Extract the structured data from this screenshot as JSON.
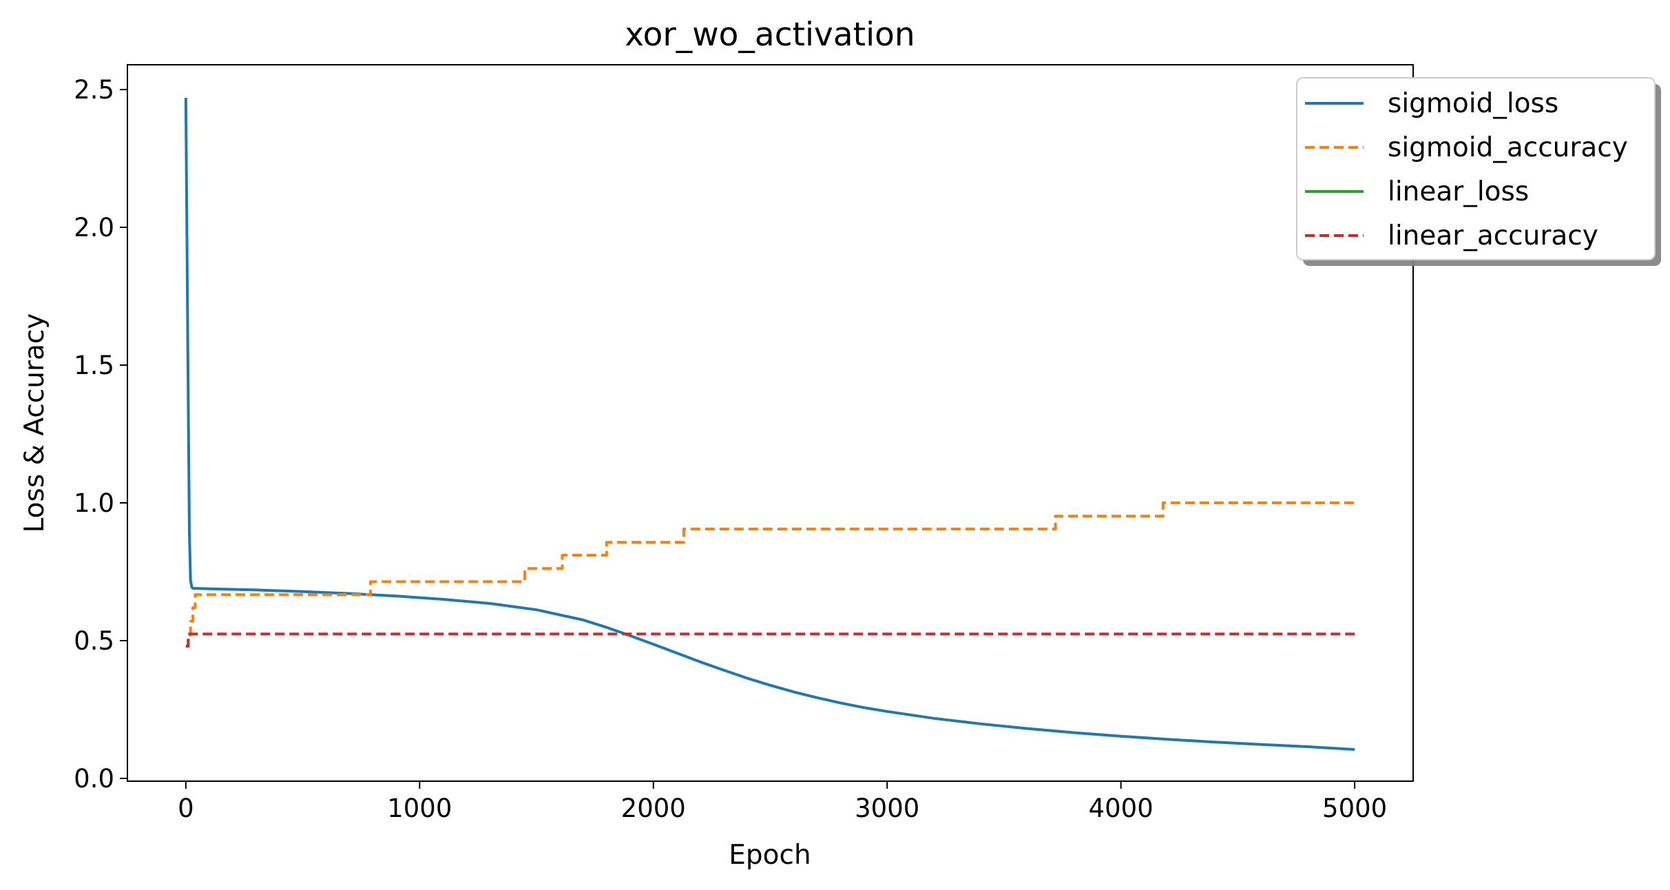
{
  "chart_data": {
    "type": "line",
    "title": "xor_wo_activation",
    "xlabel": "Epoch",
    "ylabel": "Loss & Accuracy",
    "xlim": [
      -250,
      5250
    ],
    "ylim": [
      -0.01,
      2.59
    ],
    "xticks": [
      0,
      1000,
      2000,
      3000,
      4000,
      5000
    ],
    "xtick_labels": [
      "0",
      "1000",
      "2000",
      "3000",
      "4000",
      "5000"
    ],
    "yticks": [
      0.0,
      0.5,
      1.0,
      1.5,
      2.0,
      2.5
    ],
    "ytick_labels": [
      "0.0",
      "0.5",
      "1.0",
      "1.5",
      "2.0",
      "2.5"
    ],
    "grid": false,
    "legend_position": "top-right",
    "series": [
      {
        "name": "sigmoid_loss",
        "color": "#1f77b4",
        "style": "solid",
        "step": false,
        "x": [
          0,
          8,
          15,
          20,
          25,
          30,
          100,
          300,
          500,
          700,
          900,
          1100,
          1300,
          1500,
          1700,
          1800,
          1900,
          2000,
          2100,
          2200,
          2300,
          2400,
          2500,
          2600,
          2700,
          2800,
          2900,
          3000,
          3200,
          3400,
          3600,
          3800,
          4000,
          4200,
          4400,
          4600,
          4800,
          5000
        ],
        "y": [
          2.47,
          1.6,
          0.9,
          0.72,
          0.695,
          0.69,
          0.688,
          0.684,
          0.678,
          0.671,
          0.662,
          0.65,
          0.635,
          0.612,
          0.575,
          0.548,
          0.518,
          0.487,
          0.455,
          0.423,
          0.393,
          0.364,
          0.338,
          0.314,
          0.293,
          0.274,
          0.257,
          0.243,
          0.218,
          0.198,
          0.181,
          0.166,
          0.153,
          0.142,
          0.132,
          0.123,
          0.115,
          0.105
        ]
      },
      {
        "name": "sigmoid_accuracy",
        "color": "#ff7f0e",
        "style": "dashed",
        "step": true,
        "x": [
          0,
          10,
          20,
          30,
          40,
          790,
          1450,
          1610,
          1800,
          2130,
          3720,
          4180,
          5000
        ],
        "y": [
          0.48,
          0.52,
          0.57,
          0.62,
          0.667,
          0.714,
          0.762,
          0.81,
          0.857,
          0.905,
          0.952,
          1.0,
          1.0
        ]
      },
      {
        "name": "linear_loss",
        "color": "#2ca02c",
        "style": "solid",
        "step": false,
        "x": [],
        "y": []
      },
      {
        "name": "linear_accuracy",
        "color": "#d62728",
        "style": "dashed",
        "step": true,
        "x": [
          0,
          10,
          5000
        ],
        "y": [
          0.48,
          0.524,
          0.524
        ]
      }
    ]
  }
}
